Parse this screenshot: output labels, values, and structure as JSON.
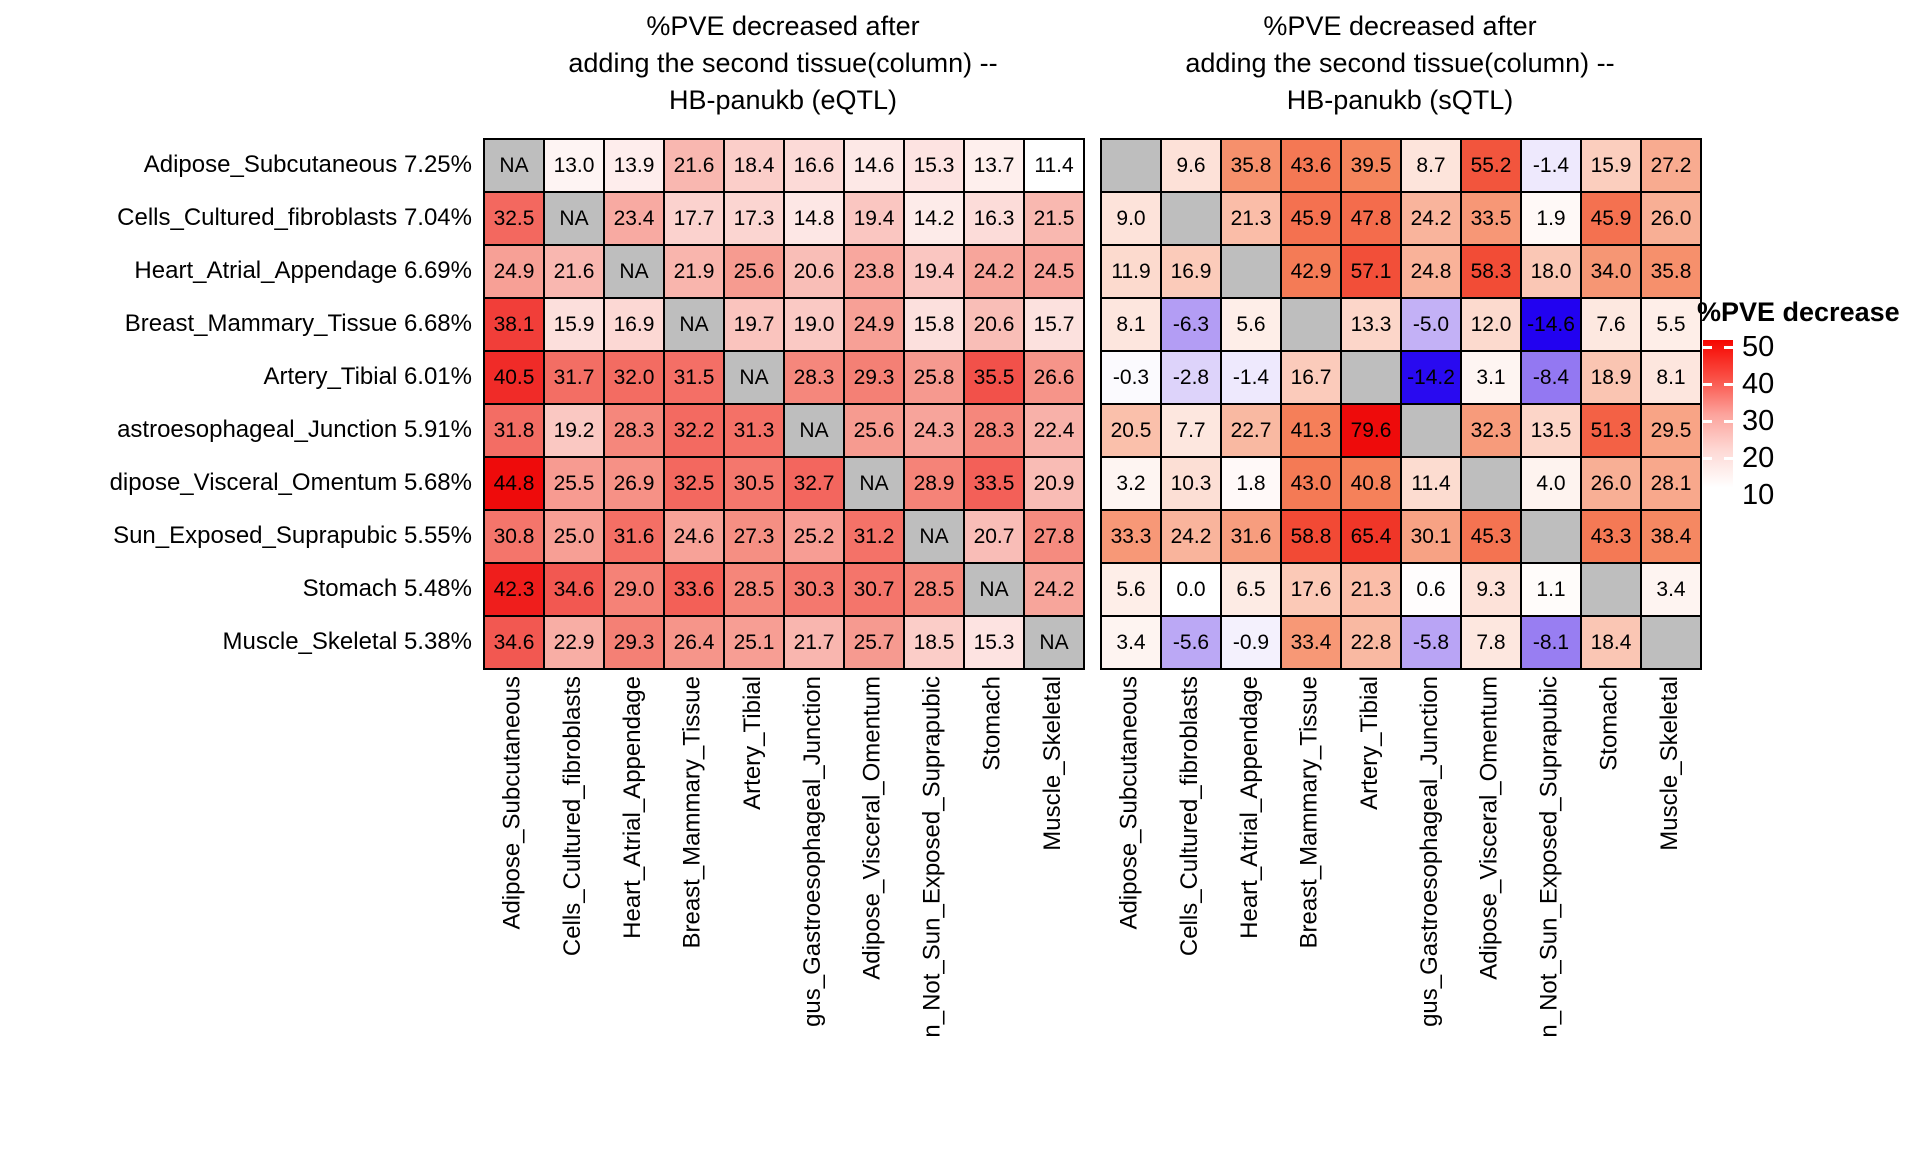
{
  "row_labels": [
    "Adipose_Subcutaneous 7.25%",
    "Cells_Cultured_fibroblasts 7.04%",
    "Heart_Atrial_Appendage 6.69%",
    "Breast_Mammary_Tissue 6.68%",
    "Artery_Tibial 6.01%",
    "astroesophageal_Junction 5.91%",
    "dipose_Visceral_Omentum 5.68%",
    "Sun_Exposed_Suprapubic 5.55%",
    "Stomach 5.48%",
    "Muscle_Skeletal 5.38%"
  ],
  "col_labels": [
    "Adipose_Subcutaneous",
    "Cells_Cultured_fibroblasts",
    "Heart_Atrial_Appendage",
    "Breast_Mammary_Tissue",
    "Artery_Tibial",
    "gus_Gastroesophageal_Junction",
    "Adipose_Visceral_Omentum",
    "n_Not_Sun_Exposed_Suprapubic",
    "Stomach",
    "Muscle_Skeletal"
  ],
  "legend": {
    "title": "%PVE decrease",
    "ticks": [
      "50",
      "40",
      "30",
      "20",
      "10"
    ]
  },
  "na_color": "#BEBEBE",
  "chart_data": [
    {
      "type": "heatmap",
      "name": "HB-panukb (eQTL)",
      "title_lines": [
        "%PVE decreased after",
        "adding the second tissue(column) --",
        "HB-panukb (eQTL)"
      ],
      "na_text": "NA",
      "color_scale": {
        "domain": [
          11.4,
          44.8
        ],
        "stops": [
          [
            0,
            "#FFFFFF"
          ],
          [
            0.5,
            "#F5897D"
          ],
          [
            1,
            "#EE0B0B"
          ]
        ]
      },
      "values": [
        [
          null,
          13.0,
          13.9,
          21.6,
          18.4,
          16.6,
          14.6,
          15.3,
          13.7,
          11.4
        ],
        [
          32.5,
          null,
          23.4,
          17.7,
          17.3,
          14.8,
          19.4,
          14.2,
          16.3,
          21.5
        ],
        [
          24.9,
          21.6,
          null,
          21.9,
          25.6,
          20.6,
          23.8,
          19.4,
          24.2,
          24.5
        ],
        [
          38.1,
          15.9,
          16.9,
          null,
          19.7,
          19.0,
          24.9,
          15.8,
          20.6,
          15.7
        ],
        [
          40.5,
          31.7,
          32.0,
          31.5,
          null,
          28.3,
          29.3,
          25.8,
          35.5,
          26.6
        ],
        [
          31.8,
          19.2,
          28.3,
          32.2,
          31.3,
          null,
          25.6,
          24.3,
          28.3,
          22.4
        ],
        [
          44.8,
          25.5,
          26.9,
          32.5,
          30.5,
          32.7,
          null,
          28.9,
          33.5,
          20.9
        ],
        [
          30.8,
          25.0,
          31.6,
          24.6,
          27.3,
          25.2,
          31.2,
          null,
          20.7,
          27.8
        ],
        [
          42.3,
          34.6,
          29.0,
          33.6,
          28.5,
          30.3,
          30.7,
          28.5,
          null,
          24.2
        ],
        [
          34.6,
          22.9,
          29.3,
          26.4,
          25.1,
          21.7,
          25.7,
          18.5,
          15.3,
          null
        ]
      ]
    },
    {
      "type": "heatmap",
      "name": "HB-panukb (sQTL)",
      "title_lines": [
        "%PVE decreased after",
        "adding the second tissue(column) --",
        "HB-panukb (sQTL)"
      ],
      "na_text": "",
      "color_scale": {
        "domain": [
          0,
          79.6
        ],
        "stops": [
          [
            0,
            "#FFFFFF"
          ],
          [
            0.5,
            "#F5845C"
          ],
          [
            1,
            "#EE0B0B"
          ]
        ],
        "neg": {
          "domain": [
            0,
            -14.6
          ],
          "stops": [
            [
              0,
              "#FFFFFF"
            ],
            [
              0.5,
              "#A78DF2"
            ],
            [
              1,
              "#2202F0"
            ]
          ]
        }
      },
      "values": [
        [
          null,
          9.6,
          35.8,
          43.6,
          39.5,
          8.7,
          55.2,
          -1.4,
          15.9,
          27.2
        ],
        [
          9.0,
          null,
          21.3,
          45.9,
          47.8,
          24.2,
          33.5,
          1.9,
          45.9,
          26.0
        ],
        [
          11.9,
          16.9,
          null,
          42.9,
          57.1,
          24.8,
          58.3,
          18.0,
          34.0,
          35.8
        ],
        [
          8.1,
          -6.3,
          5.6,
          null,
          13.3,
          -5.0,
          12.0,
          -14.6,
          7.6,
          5.5
        ],
        [
          -0.3,
          -2.8,
          -1.4,
          16.7,
          null,
          -14.2,
          3.1,
          -8.4,
          18.9,
          8.1
        ],
        [
          20.5,
          7.7,
          22.7,
          41.3,
          79.6,
          null,
          32.3,
          13.5,
          51.3,
          29.5
        ],
        [
          3.2,
          10.3,
          1.8,
          43.0,
          40.8,
          11.4,
          null,
          4.0,
          26.0,
          28.1
        ],
        [
          33.3,
          24.2,
          31.6,
          58.8,
          65.4,
          30.1,
          45.3,
          null,
          43.3,
          38.4
        ],
        [
          5.6,
          0.0,
          6.5,
          17.6,
          21.3,
          0.6,
          9.3,
          1.1,
          null,
          3.4
        ],
        [
          3.4,
          -5.6,
          -0.9,
          33.4,
          22.8,
          -5.8,
          7.8,
          -8.1,
          18.4,
          null
        ]
      ]
    }
  ]
}
